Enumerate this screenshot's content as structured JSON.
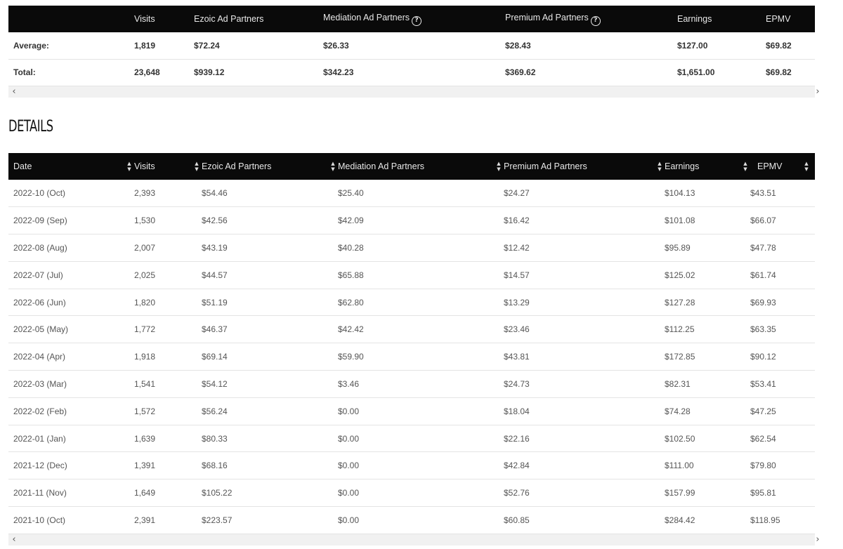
{
  "summary": {
    "headers": [
      "",
      "Visits",
      "Ezoic Ad Partners",
      "Mediation Ad Partners",
      "Premium Ad Partners",
      "Earnings",
      "EPMV"
    ],
    "rows": [
      [
        "Average:",
        "1,819",
        "$72.24",
        "$26.33",
        "$28.43",
        "$127.00",
        "$69.82"
      ],
      [
        "Total:",
        "23,648",
        "$939.12",
        "$342.23",
        "$369.62",
        "$1,651.00",
        "$69.82"
      ]
    ],
    "help_icon_glyph": "?"
  },
  "details": {
    "title": "DETAILS",
    "headers": [
      "Date",
      "Visits",
      "Ezoic Ad Partners",
      "Mediation Ad Partners",
      "Premium Ad Partners",
      "Earnings",
      "EPMV"
    ],
    "rows": [
      [
        "2022-10 (Oct)",
        "2,393",
        "$54.46",
        "$25.40",
        "$24.27",
        "$104.13",
        "$43.51"
      ],
      [
        "2022-09 (Sep)",
        "1,530",
        "$42.56",
        "$42.09",
        "$16.42",
        "$101.08",
        "$66.07"
      ],
      [
        "2022-08 (Aug)",
        "2,007",
        "$43.19",
        "$40.28",
        "$12.42",
        "$95.89",
        "$47.78"
      ],
      [
        "2022-07 (Jul)",
        "2,025",
        "$44.57",
        "$65.88",
        "$14.57",
        "$125.02",
        "$61.74"
      ],
      [
        "2022-06 (Jun)",
        "1,820",
        "$51.19",
        "$62.80",
        "$13.29",
        "$127.28",
        "$69.93"
      ],
      [
        "2022-05 (May)",
        "1,772",
        "$46.37",
        "$42.42",
        "$23.46",
        "$112.25",
        "$63.35"
      ],
      [
        "2022-04 (Apr)",
        "1,918",
        "$69.14",
        "$59.90",
        "$43.81",
        "$172.85",
        "$90.12"
      ],
      [
        "2022-03 (Mar)",
        "1,541",
        "$54.12",
        "$3.46",
        "$24.73",
        "$82.31",
        "$53.41"
      ],
      [
        "2022-02 (Feb)",
        "1,572",
        "$56.24",
        "$0.00",
        "$18.04",
        "$74.28",
        "$47.25"
      ],
      [
        "2022-01 (Jan)",
        "1,639",
        "$80.33",
        "$0.00",
        "$22.16",
        "$102.50",
        "$62.54"
      ],
      [
        "2021-12 (Dec)",
        "1,391",
        "$68.16",
        "$0.00",
        "$42.84",
        "$111.00",
        "$79.80"
      ],
      [
        "2021-11 (Nov)",
        "1,649",
        "$105.22",
        "$0.00",
        "$52.76",
        "$157.99",
        "$95.81"
      ],
      [
        "2021-10 (Oct)",
        "2,391",
        "$223.57",
        "$0.00",
        "$60.85",
        "$284.42",
        "$118.95"
      ]
    ]
  },
  "icons": {
    "sort": "sort-icon",
    "scroll_left": "chevron-left-icon",
    "scroll_right": "chevron-right-icon",
    "help": "help-icon"
  },
  "colors": {
    "header_bg": "#0a0a0a",
    "header_text": "#e8e8e8",
    "scrollbar_bg": "#f1f1f1"
  }
}
